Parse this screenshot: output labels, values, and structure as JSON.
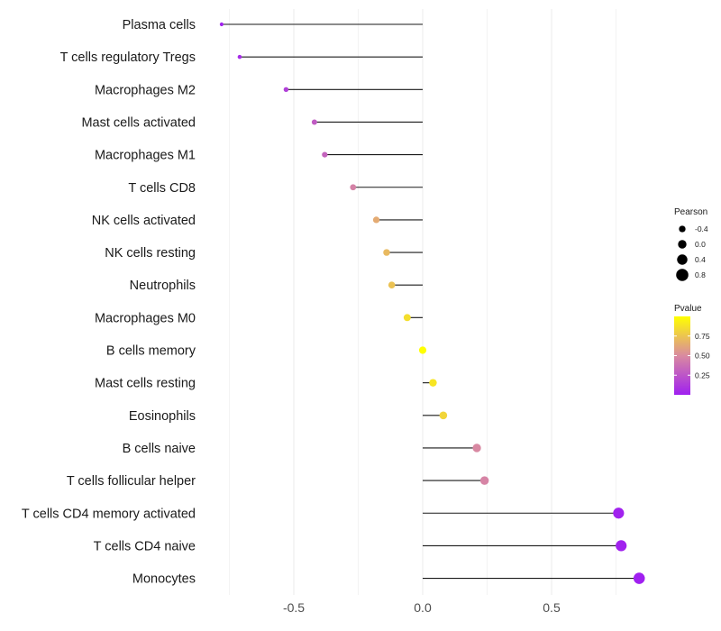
{
  "chart_data": {
    "type": "lollipop",
    "title": "",
    "xlabel": "",
    "ylabel": "",
    "xlim": [
      -0.82,
      0.86
    ],
    "xticks": [
      -0.5,
      0.0,
      0.5
    ],
    "xtick_labels": [
      "-0.5",
      "0.0",
      "0.5"
    ],
    "grid": true,
    "points": [
      {
        "category": "Plasma cells",
        "pearson": -0.78,
        "pvalue": 0.01
      },
      {
        "category": "T cells regulatory  Tregs",
        "pearson": -0.71,
        "pvalue": 0.05
      },
      {
        "category": "Macrophages M2",
        "pearson": -0.53,
        "pvalue": 0.15
      },
      {
        "category": "Mast cells activated",
        "pearson": -0.42,
        "pvalue": 0.28
      },
      {
        "category": "Macrophages M1",
        "pearson": -0.38,
        "pvalue": 0.32
      },
      {
        "category": "T cells CD8",
        "pearson": -0.27,
        "pvalue": 0.46
      },
      {
        "category": "NK cells activated",
        "pearson": -0.18,
        "pvalue": 0.64
      },
      {
        "category": "NK cells resting",
        "pearson": -0.14,
        "pvalue": 0.7
      },
      {
        "category": "Neutrophils",
        "pearson": -0.12,
        "pvalue": 0.74
      },
      {
        "category": "Macrophages M0",
        "pearson": -0.06,
        "pvalue": 0.86
      },
      {
        "category": "B cells memory",
        "pearson": 0.0,
        "pvalue": 1.0
      },
      {
        "category": "Mast cells resting",
        "pearson": 0.04,
        "pvalue": 0.89
      },
      {
        "category": "Eosinophils",
        "pearson": 0.08,
        "pvalue": 0.82
      },
      {
        "category": "B cells naive",
        "pearson": 0.21,
        "pvalue": 0.49
      },
      {
        "category": "T cells follicular helper",
        "pearson": 0.24,
        "pvalue": 0.47
      },
      {
        "category": "T cells CD4 memory activated",
        "pearson": 0.76,
        "pvalue": 0.01
      },
      {
        "category": "T cells CD4 naive",
        "pearson": 0.77,
        "pvalue": 0.01
      },
      {
        "category": "Monocytes",
        "pearson": 0.84,
        "pvalue": 0.0
      }
    ],
    "legend": {
      "size": {
        "title": "Pearson",
        "values": [
          -0.4,
          0.0,
          0.4,
          0.8
        ],
        "labels": [
          "-0.4",
          "0.0",
          "0.4",
          "0.8"
        ]
      },
      "color": {
        "title": "Pvalue",
        "range": [
          0.0,
          1.0
        ],
        "ticks": [
          0.25,
          0.5,
          0.75
        ],
        "tick_labels": [
          "0.25",
          "0.50",
          "0.75"
        ],
        "low_color": "#a020f0",
        "mid_color": "#d98aa0",
        "high_color": "#ffff00"
      },
      "placement": "right"
    },
    "colors": {
      "stem": "#1a1a1a",
      "grid": "#ebebeb"
    }
  }
}
